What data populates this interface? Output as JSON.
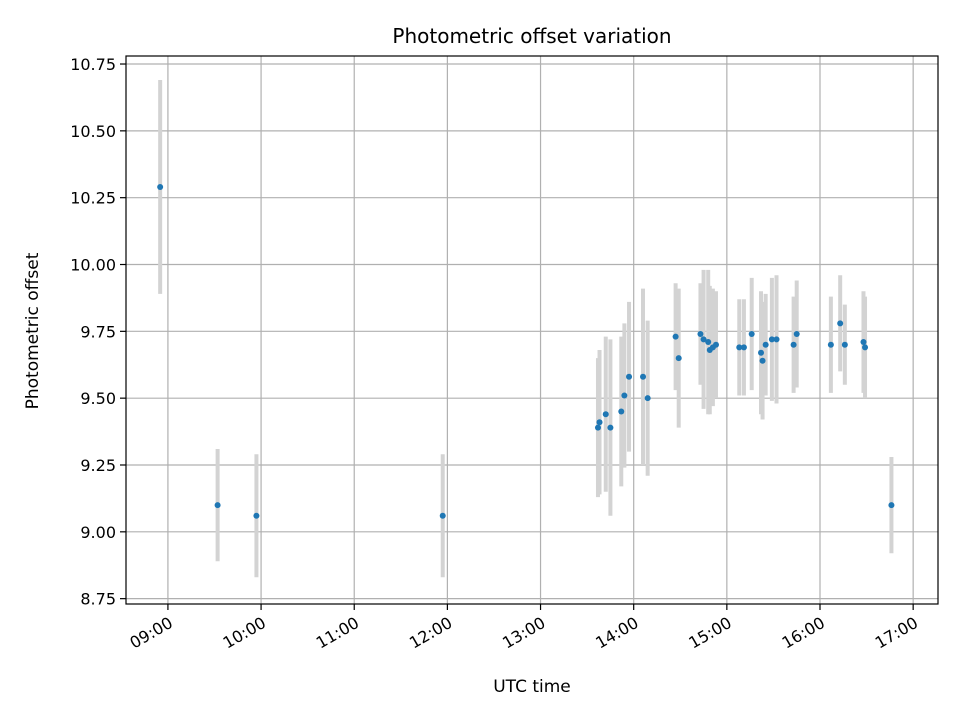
{
  "chart_data": {
    "type": "scatter",
    "title": "Photometric offset variation",
    "xlabel": "UTC time",
    "ylabel": "Photometric offset",
    "x_tick_labels": [
      "09:00",
      "10:00",
      "11:00",
      "12:00",
      "13:00",
      "14:00",
      "15:00",
      "16:00",
      "17:00"
    ],
    "x_ticks_hours": [
      9,
      10,
      11,
      12,
      13,
      14,
      15,
      16,
      17
    ],
    "y_tick_labels": [
      "8.75",
      "9.00",
      "9.25",
      "9.50",
      "9.75",
      "10.00",
      "10.25",
      "10.50",
      "10.75"
    ],
    "y_ticks": [
      8.75,
      9.0,
      9.25,
      9.5,
      9.75,
      10.0,
      10.25,
      10.5,
      10.75
    ],
    "xlim": [
      "08:33",
      "17:16"
    ],
    "ylim": [
      8.73,
      10.78
    ],
    "grid": true,
    "point_color": "#1f77b4",
    "errorbar_color": "#d3d3d3",
    "points": [
      {
        "t": "08:55",
        "y": 10.29,
        "err": 0.4
      },
      {
        "t": "09:32",
        "y": 9.1,
        "err": 0.21
      },
      {
        "t": "09:57",
        "y": 9.06,
        "err": 0.23
      },
      {
        "t": "11:57",
        "y": 9.06,
        "err": 0.23
      },
      {
        "t": "13:37",
        "y": 9.39,
        "err": 0.26
      },
      {
        "t": "13:38",
        "y": 9.41,
        "err": 0.27
      },
      {
        "t": "13:42",
        "y": 9.44,
        "err": 0.29
      },
      {
        "t": "13:45",
        "y": 9.39,
        "err": 0.33
      },
      {
        "t": "13:52",
        "y": 9.45,
        "err": 0.28
      },
      {
        "t": "13:54",
        "y": 9.51,
        "err": 0.27
      },
      {
        "t": "13:57",
        "y": 9.58,
        "err": 0.28
      },
      {
        "t": "14:06",
        "y": 9.58,
        "err": 0.33
      },
      {
        "t": "14:09",
        "y": 9.5,
        "err": 0.29
      },
      {
        "t": "14:27",
        "y": 9.73,
        "err": 0.2
      },
      {
        "t": "14:29",
        "y": 9.65,
        "err": 0.26
      },
      {
        "t": "14:43",
        "y": 9.74,
        "err": 0.19
      },
      {
        "t": "14:45",
        "y": 9.72,
        "err": 0.26
      },
      {
        "t": "14:48",
        "y": 9.71,
        "err": 0.27
      },
      {
        "t": "14:49",
        "y": 9.68,
        "err": 0.24
      },
      {
        "t": "14:51",
        "y": 9.69,
        "err": 0.22
      },
      {
        "t": "14:53",
        "y": 9.7,
        "err": 0.2
      },
      {
        "t": "15:08",
        "y": 9.69,
        "err": 0.18
      },
      {
        "t": "15:11",
        "y": 9.69,
        "err": 0.18
      },
      {
        "t": "15:16",
        "y": 9.74,
        "err": 0.21
      },
      {
        "t": "15:22",
        "y": 9.67,
        "err": 0.23
      },
      {
        "t": "15:23",
        "y": 9.64,
        "err": 0.22
      },
      {
        "t": "15:25",
        "y": 9.7,
        "err": 0.19
      },
      {
        "t": "15:29",
        "y": 9.72,
        "err": 0.23
      },
      {
        "t": "15:32",
        "y": 9.72,
        "err": 0.24
      },
      {
        "t": "15:43",
        "y": 9.7,
        "err": 0.18
      },
      {
        "t": "15:45",
        "y": 9.74,
        "err": 0.2
      },
      {
        "t": "16:07",
        "y": 9.7,
        "err": 0.18
      },
      {
        "t": "16:13",
        "y": 9.78,
        "err": 0.18
      },
      {
        "t": "16:16",
        "y": 9.7,
        "err": 0.15
      },
      {
        "t": "16:28",
        "y": 9.71,
        "err": 0.19
      },
      {
        "t": "16:29",
        "y": 9.69,
        "err": 0.19
      },
      {
        "t": "16:46",
        "y": 9.1,
        "err": 0.18
      }
    ]
  }
}
